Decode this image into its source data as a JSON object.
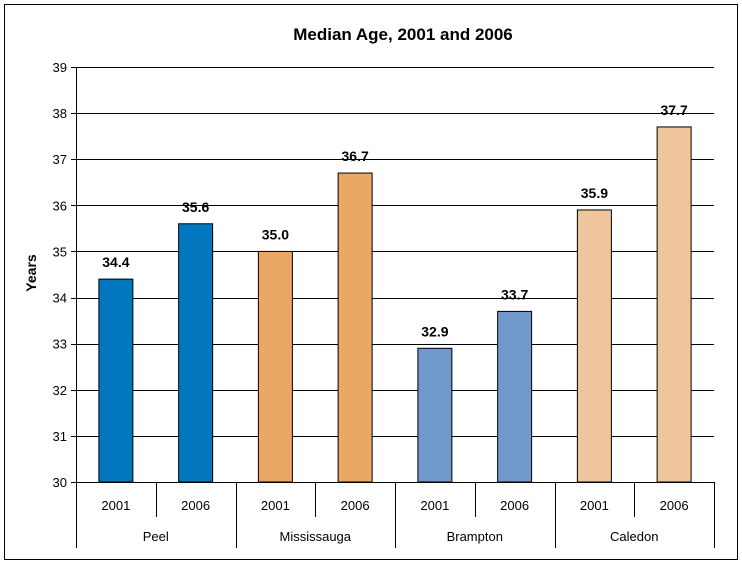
{
  "chart_data": {
    "type": "bar",
    "title": "Median Age, 2001 and 2006",
    "ylabel": "Years",
    "ylim": [
      30,
      39
    ],
    "yticks": [
      30,
      31,
      32,
      33,
      34,
      35,
      36,
      37,
      38,
      39
    ],
    "grid": true,
    "groups": [
      {
        "name": "Peel",
        "color": "#0277BD",
        "bars": [
          {
            "category": "2001",
            "value": 34.4,
            "label": "34.4"
          },
          {
            "category": "2006",
            "value": 35.6,
            "label": "35.6"
          }
        ]
      },
      {
        "name": "Mississauga",
        "color": "#E9A863",
        "bars": [
          {
            "category": "2001",
            "value": 35.0,
            "label": "35.0"
          },
          {
            "category": "2006",
            "value": 36.7,
            "label": "36.7"
          }
        ]
      },
      {
        "name": "Brampton",
        "color": "#7299CB",
        "bars": [
          {
            "category": "2001",
            "value": 32.9,
            "label": "32.9"
          },
          {
            "category": "2006",
            "value": 33.7,
            "label": "33.7"
          }
        ]
      },
      {
        "name": "Caledon",
        "color": "#EFC69C",
        "bars": [
          {
            "category": "2001",
            "value": 35.9,
            "label": "35.9"
          },
          {
            "category": "2006",
            "value": 37.7,
            "label": "37.7"
          }
        ]
      }
    ]
  }
}
